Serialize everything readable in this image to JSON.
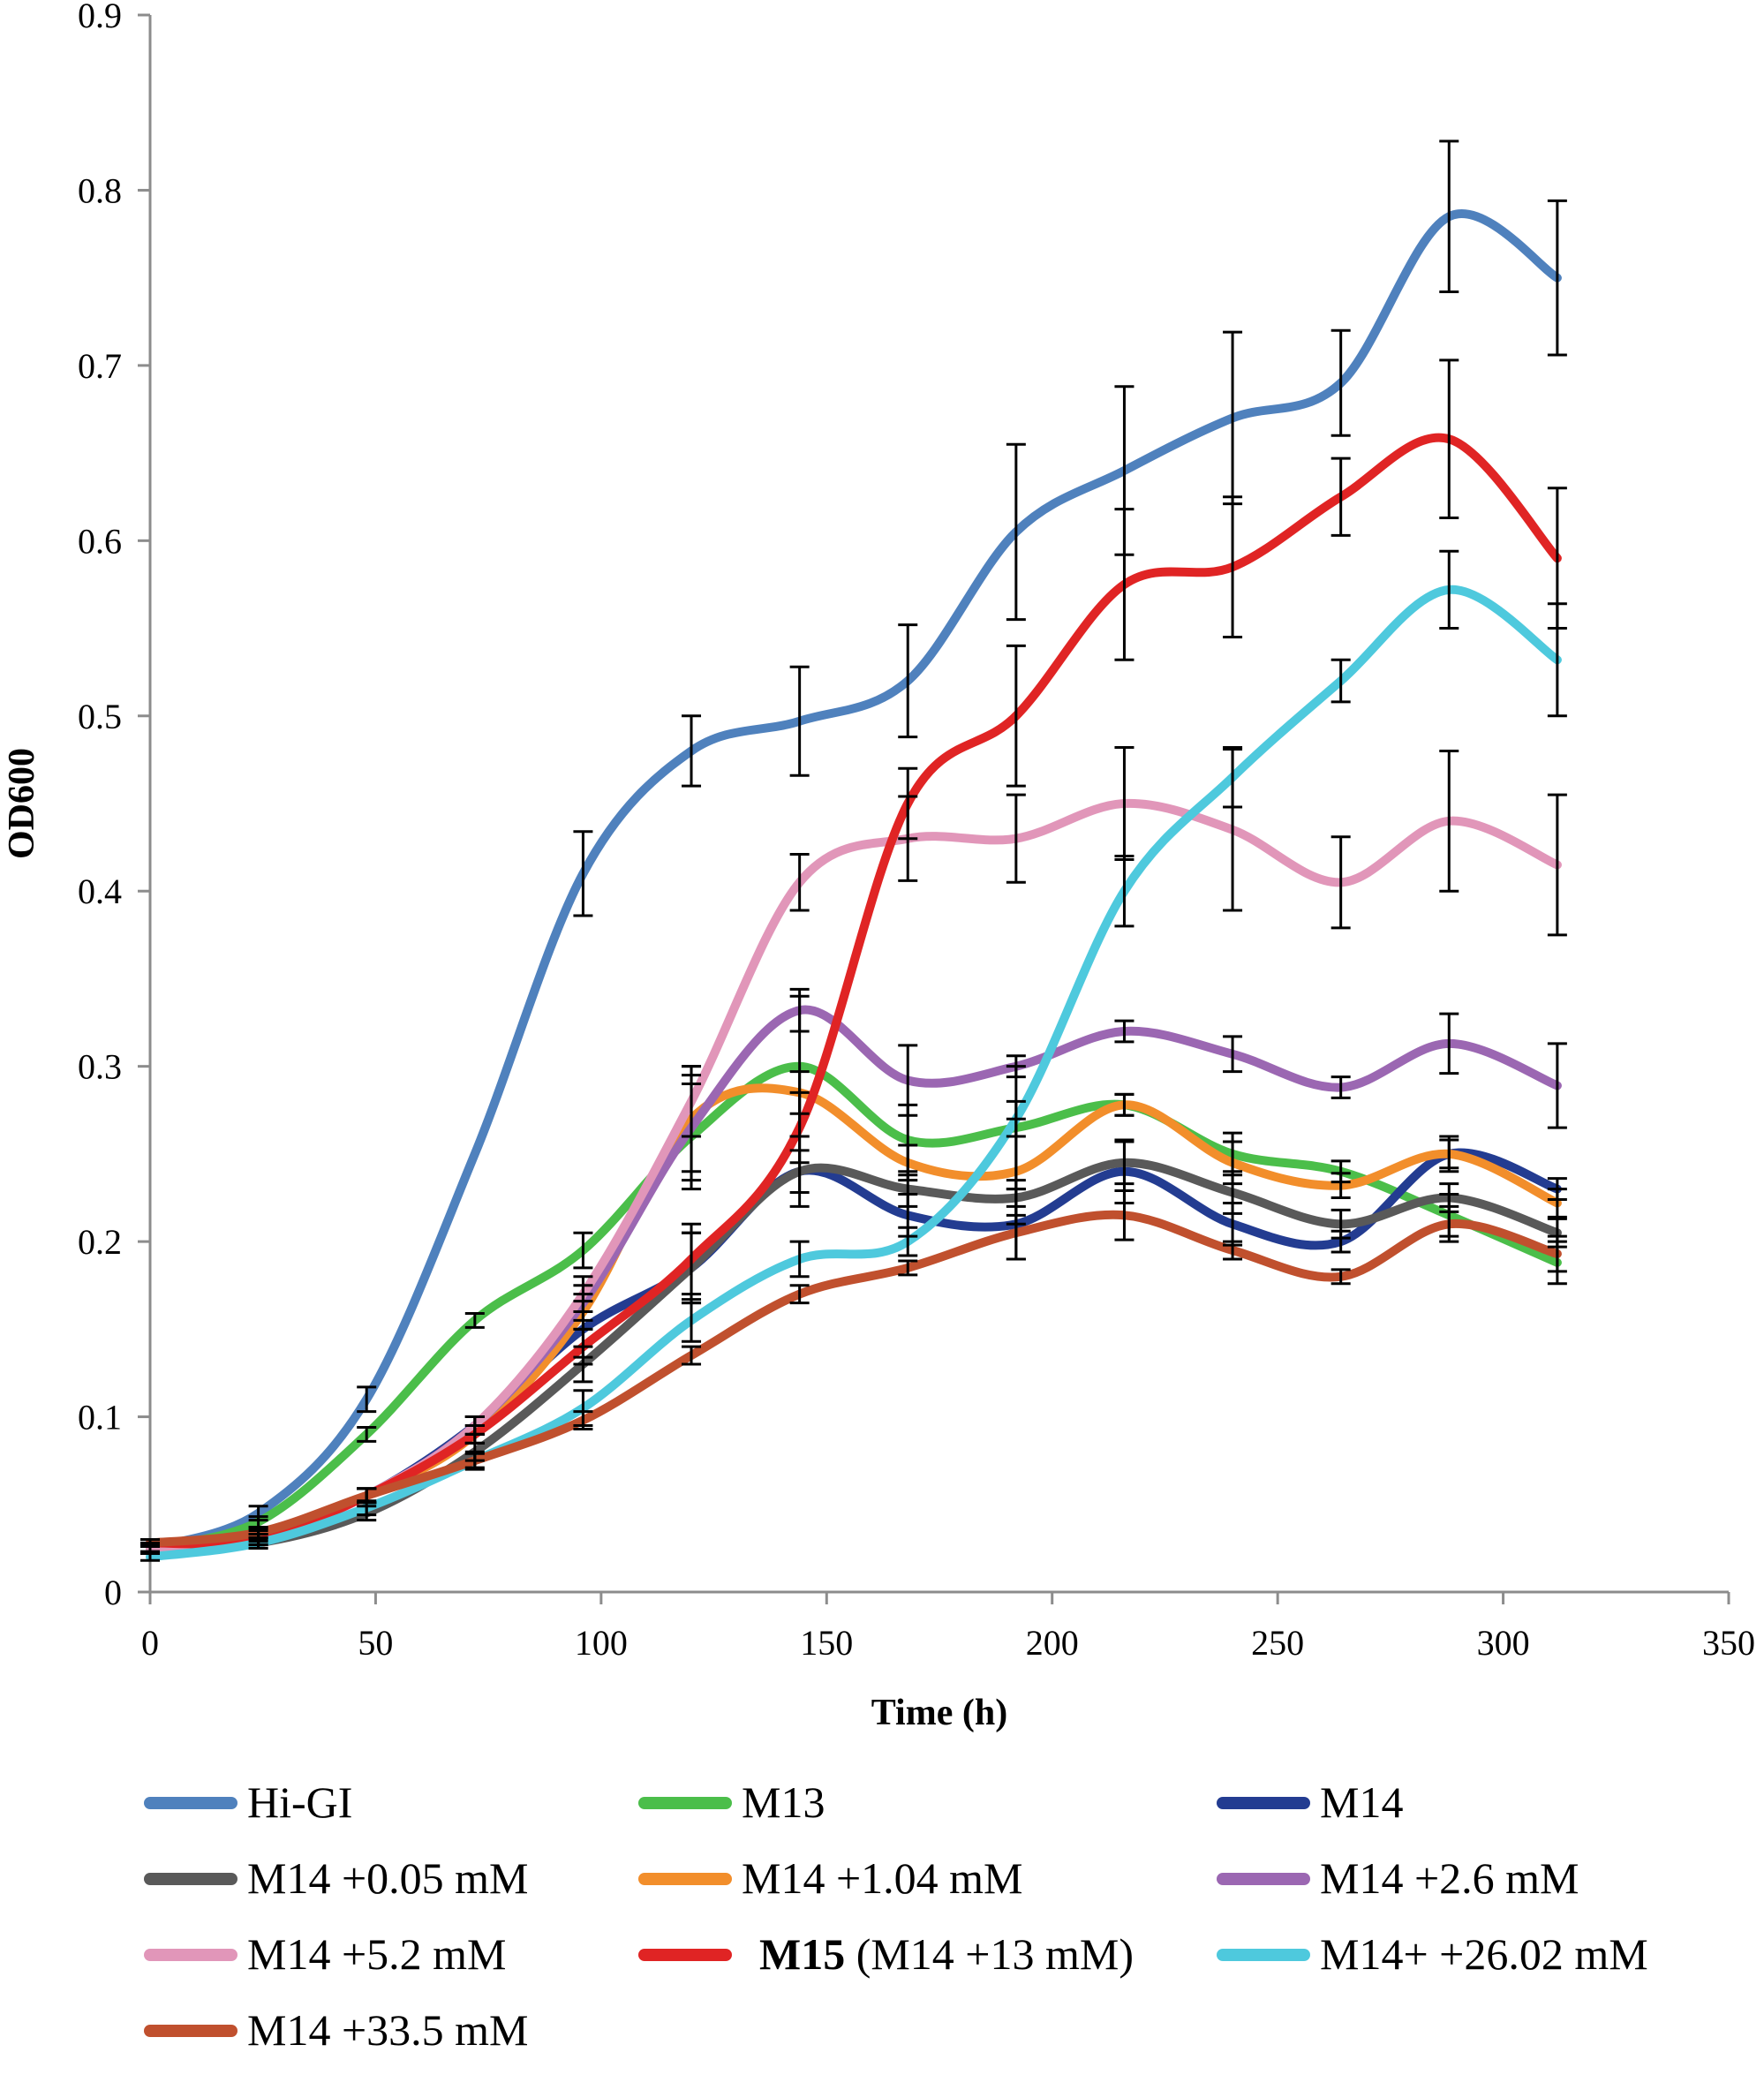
{
  "chart_data": {
    "type": "line",
    "title": "",
    "xlabel": "Time (h)",
    "ylabel": "OD600",
    "xlim": [
      0,
      350
    ],
    "ylim": [
      0,
      0.9
    ],
    "xticks": [
      0,
      50,
      100,
      150,
      200,
      250,
      300,
      350
    ],
    "yticks": [
      0,
      0.1,
      0.2,
      0.3,
      0.4,
      0.5,
      0.6,
      0.7,
      0.8,
      0.9
    ],
    "xtick_labels": [
      "0",
      "50",
      "100",
      "150",
      "200",
      "250",
      "300",
      "350"
    ],
    "ytick_labels": [
      "0",
      "0.1",
      "0.2",
      "0.3",
      "0.4",
      "0.5",
      "0.6",
      "0.7",
      "0.8",
      "0.9"
    ],
    "grid": false,
    "legend_position": "bottom",
    "x": [
      0,
      24,
      48,
      72,
      96,
      120,
      144,
      168,
      192,
      216,
      240,
      264,
      288,
      312
    ],
    "series": [
      {
        "name": "Hi-GI",
        "label": "Hi-GI",
        "color": "#4f81bd",
        "values": [
          0.025,
          0.045,
          0.11,
          0.25,
          0.41,
          0.48,
          0.497,
          0.52,
          0.605,
          0.64,
          0.67,
          0.69,
          0.785,
          0.75
        ],
        "errors": [
          0.003,
          0.004,
          0.007,
          0.0,
          0.024,
          0.02,
          0.031,
          0.032,
          0.05,
          0.048,
          0.049,
          0.03,
          0.043,
          0.044
        ]
      },
      {
        "name": "M13",
        "label": "M13",
        "color": "#4bbe4a",
        "values": [
          0.025,
          0.04,
          0.09,
          0.155,
          0.195,
          0.26,
          0.3,
          0.258,
          0.265,
          0.278,
          0.25,
          0.24,
          0.215,
          0.188
        ],
        "errors": [
          0.002,
          0.003,
          0.004,
          0.004,
          0.01,
          0.03,
          0.04,
          0.02,
          0.035,
          0.006,
          0.012,
          0.006,
          0.012,
          0.012
        ]
      },
      {
        "name": "M14",
        "label": "M14",
        "color": "#233c91",
        "values": [
          0.025,
          0.033,
          0.055,
          0.095,
          0.15,
          0.185,
          0.24,
          0.215,
          0.21,
          0.24,
          0.21,
          0.2,
          0.25,
          0.23
        ],
        "errors": [
          0.002,
          0.003,
          0.004,
          0.005,
          0.016,
          0.02,
          0.02,
          0.012,
          0.02,
          0.018,
          0.012,
          0.006,
          0.01,
          0.006
        ]
      },
      {
        "name": "M14 +0.05 mM",
        "label": "M14 +0.05 mM",
        "color": "#595959",
        "values": [
          0.025,
          0.028,
          0.045,
          0.08,
          0.13,
          0.185,
          0.24,
          0.23,
          0.225,
          0.245,
          0.228,
          0.21,
          0.225,
          0.205
        ],
        "errors": [
          0.002,
          0.003,
          0.004,
          0.005,
          0.01,
          0.02,
          0.012,
          0.01,
          0.01,
          0.012,
          0.012,
          0.008,
          0.008,
          0.008
        ]
      },
      {
        "name": "M14 +1.04 mM",
        "label": "M14 +1.04 mM",
        "color": "#f28e2b",
        "values": [
          0.025,
          0.03,
          0.055,
          0.09,
          0.16,
          0.27,
          0.285,
          0.245,
          0.24,
          0.278,
          0.245,
          0.232,
          0.25,
          0.222
        ],
        "errors": [
          0.002,
          0.003,
          0.004,
          0.005,
          0.01,
          0.03,
          0.012,
          0.01,
          0.03,
          0.006,
          0.012,
          0.007,
          0.008,
          0.008
        ]
      },
      {
        "name": "M14 +2.6 mM",
        "label": "M14 +2.6 mM",
        "color": "#9b67b2",
        "values": [
          0.028,
          0.032,
          0.055,
          0.095,
          0.165,
          0.265,
          0.332,
          0.292,
          0.3,
          0.32,
          0.307,
          0.288,
          0.313,
          0.289
        ],
        "errors": [
          0.002,
          0.003,
          0.004,
          0.005,
          0.01,
          0.03,
          0.012,
          0.02,
          0.006,
          0.006,
          0.01,
          0.006,
          0.017,
          0.024
        ]
      },
      {
        "name": "M14 +5.2 mM",
        "label": "M14 +5.2 mM",
        "color": "#e196b9",
        "values": [
          0.025,
          0.03,
          0.055,
          0.095,
          0.17,
          0.28,
          0.405,
          0.43,
          0.43,
          0.45,
          0.435,
          0.405,
          0.44,
          0.415
        ],
        "errors": [
          0.002,
          0.003,
          0.004,
          0.005,
          0.01,
          0.02,
          0.016,
          0.024,
          0.025,
          0.032,
          0.046,
          0.026,
          0.04,
          0.04
        ]
      },
      {
        "name": "M15 (M14 +13 mM)",
        "label_bold": "M15",
        "label_rest": " (M14 +13 mM)",
        "color": "#e02424",
        "values": [
          0.028,
          0.03,
          0.055,
          0.09,
          0.14,
          0.19,
          0.265,
          0.45,
          0.5,
          0.575,
          0.585,
          0.625,
          0.658,
          0.59
        ],
        "errors": [
          0.002,
          0.003,
          0.004,
          0.005,
          0.01,
          0.02,
          0.02,
          0.02,
          0.04,
          0.043,
          0.04,
          0.022,
          0.045,
          0.04
        ]
      },
      {
        "name": "M14+ +26.02 mM",
        "label": "M14+ +26.02 mM",
        "color": "#4ec9dd",
        "values": [
          0.02,
          0.028,
          0.048,
          0.075,
          0.105,
          0.155,
          0.19,
          0.2,
          0.27,
          0.4,
          0.465,
          0.52,
          0.572,
          0.532
        ],
        "errors": [
          0.002,
          0.003,
          0.004,
          0.005,
          0.01,
          0.012,
          0.01,
          0.008,
          0.01,
          0.02,
          0.017,
          0.012,
          0.022,
          0.032
        ]
      },
      {
        "name": "M14 +33.5 mM",
        "label": "M14 +33.5 mM",
        "color": "#c0502e",
        "values": [
          0.028,
          0.034,
          0.055,
          0.075,
          0.098,
          0.135,
          0.17,
          0.185,
          0.205,
          0.215,
          0.195,
          0.18,
          0.21,
          0.193
        ],
        "errors": [
          0.002,
          0.003,
          0.004,
          0.004,
          0.005,
          0.005,
          0.005,
          0.004,
          0.015,
          0.014,
          0.005,
          0.004,
          0.01,
          0.01
        ]
      }
    ]
  }
}
